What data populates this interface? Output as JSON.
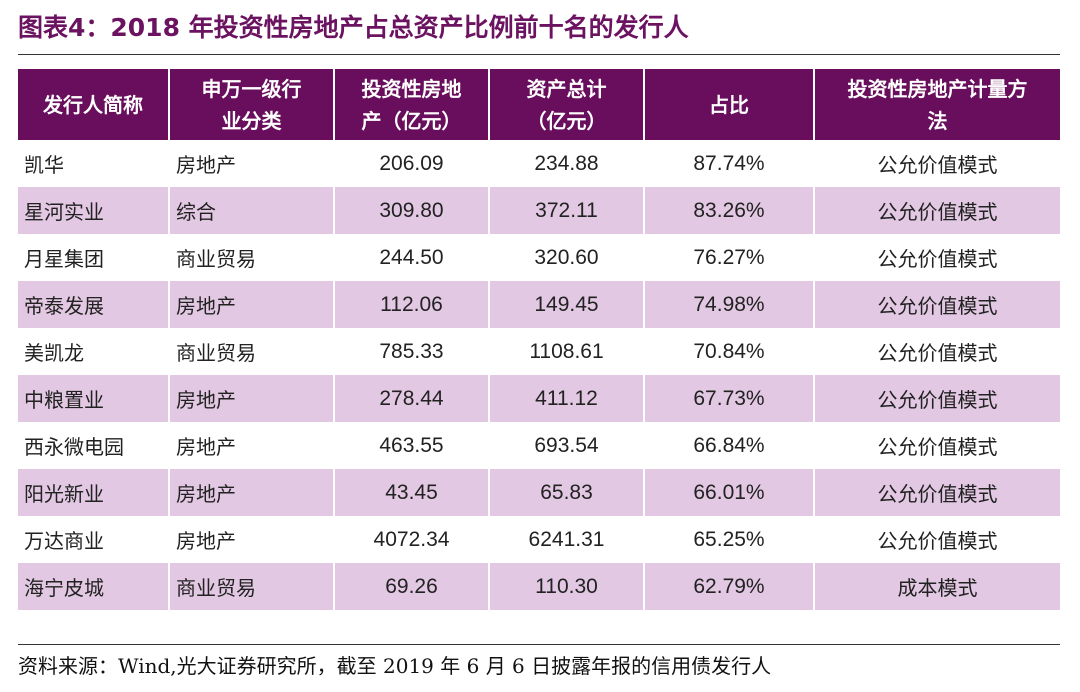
{
  "header": {
    "title": "图表4：2018 年投资性房地产占总资产比例前十名的发行人"
  },
  "table": {
    "columns": [
      [
        "发行人简称"
      ],
      [
        "申万一级行",
        "业分类"
      ],
      [
        "投资性房地",
        "产（亿元）"
      ],
      [
        "资产总计",
        "（亿元）"
      ],
      [
        "占比"
      ],
      [
        "投资性房地产计量方",
        "法"
      ]
    ],
    "rows": [
      [
        "凯华",
        "房地产",
        "206.09",
        "234.88",
        "87.74%",
        "公允价值模式"
      ],
      [
        "星河实业",
        "综合",
        "309.80",
        "372.11",
        "83.26%",
        "公允价值模式"
      ],
      [
        "月星集团",
        "商业贸易",
        "244.50",
        "320.60",
        "76.27%",
        "公允价值模式"
      ],
      [
        "帝泰发展",
        "房地产",
        "112.06",
        "149.45",
        "74.98%",
        "公允价值模式"
      ],
      [
        "美凯龙",
        "商业贸易",
        "785.33",
        "1108.61",
        "70.84%",
        "公允价值模式"
      ],
      [
        "中粮置业",
        "房地产",
        "278.44",
        "411.12",
        "67.73%",
        "公允价值模式"
      ],
      [
        "西永微电园",
        "房地产",
        "463.55",
        "693.54",
        "66.84%",
        "公允价值模式"
      ],
      [
        "阳光新业",
        "房地产",
        "43.45",
        "65.83",
        "66.01%",
        "公允价值模式"
      ],
      [
        "万达商业",
        "房地产",
        "4072.34",
        "6241.31",
        "65.25%",
        "公允价值模式"
      ],
      [
        "海宁皮城",
        "商业贸易",
        "69.26",
        "110.30",
        "62.79%",
        "成本模式"
      ]
    ]
  },
  "footer": {
    "source": "资料来源：Wind,光大证券研究所，截至 2019 年 6 月 6 日披露年报的信用债发行人"
  }
}
